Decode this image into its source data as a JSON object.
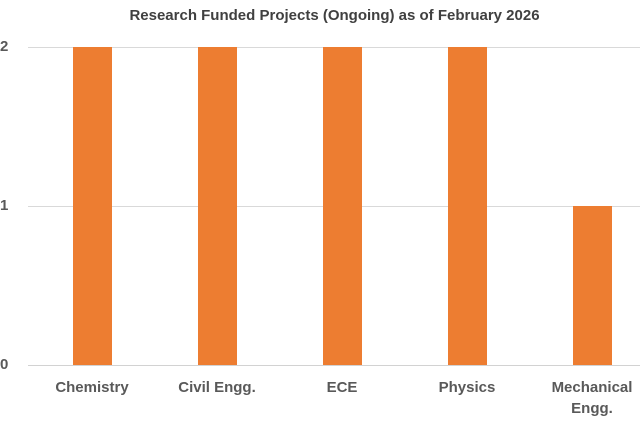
{
  "chart_data": {
    "type": "bar",
    "title": "Research Funded Projects (Ongoing) as of February 2026",
    "categories": [
      "Chemistry",
      "Civil Engg.",
      "ECE",
      "Physics",
      "Mechanical Engg."
    ],
    "values": [
      2,
      2,
      2,
      2,
      1
    ],
    "xlabel": "",
    "ylabel": "",
    "ylim": [
      0,
      2
    ],
    "yticks": [
      0,
      1,
      2
    ],
    "grid": true,
    "legend": "none",
    "colors": {
      "bar": "#ED7D31",
      "gridline": "#D9D9D9",
      "axis_line": "#D2D2D2",
      "tick_label": "#595959",
      "category_label": "#595959",
      "title": "#404040",
      "background": "#FFFFFF"
    }
  }
}
